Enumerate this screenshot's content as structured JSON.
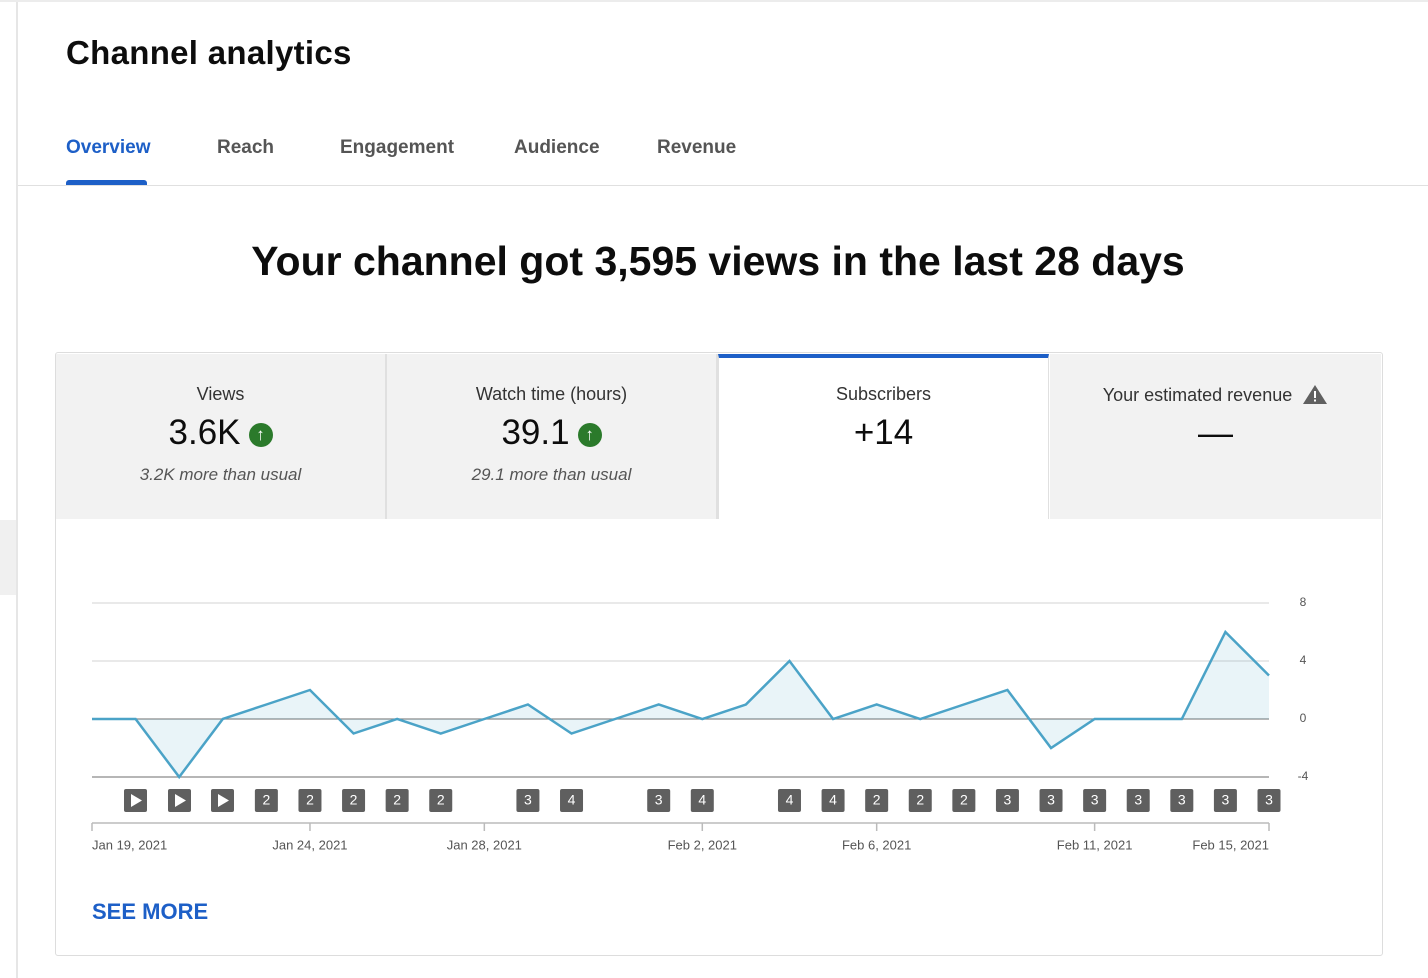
{
  "header": {
    "title": "Channel analytics"
  },
  "tabs": [
    "Overview",
    "Reach",
    "Engagement",
    "Audience",
    "Revenue"
  ],
  "headline": "Your channel got 3,595 views in the last 28 days",
  "metrics": [
    {
      "label": "Views",
      "value": "3.6K",
      "note": "3.2K more than usual"
    },
    {
      "label": "Watch time (hours)",
      "value": "39.1",
      "note": "29.1 more than usual"
    },
    {
      "label": "Subscribers",
      "value": "+14"
    },
    {
      "label": "Your estimated revenue",
      "value": "—"
    }
  ],
  "chart_data": {
    "type": "line",
    "categories": [
      "Jan 19, 2021",
      null,
      null,
      null,
      null,
      "Jan 24, 2021",
      null,
      null,
      null,
      "Jan 28, 2021",
      null,
      null,
      null,
      null,
      "Feb 2, 2021",
      null,
      null,
      null,
      "Feb 6, 2021",
      null,
      null,
      null,
      null,
      "Feb 11, 2021",
      null,
      null,
      null,
      "Feb 15, 2021"
    ],
    "values": [
      0,
      0,
      -4,
      0,
      1,
      2,
      -1,
      0,
      -1,
      0,
      1,
      -1,
      0,
      1,
      0,
      1,
      4,
      0,
      1,
      0,
      1,
      2,
      -2,
      0,
      0,
      0,
      6,
      3
    ],
    "markers": [
      null,
      null,
      null,
      null,
      2,
      2,
      2,
      2,
      2,
      null,
      3,
      4,
      null,
      3,
      4,
      null,
      4,
      4,
      2,
      2,
      2,
      3,
      3,
      3,
      3,
      3,
      3,
      3
    ],
    "color": "#4ba3c7",
    "ylim": [
      -4,
      8
    ],
    "yticks": [
      -4,
      0,
      4,
      8
    ],
    "grid": true
  },
  "see_more": "SEE MORE"
}
